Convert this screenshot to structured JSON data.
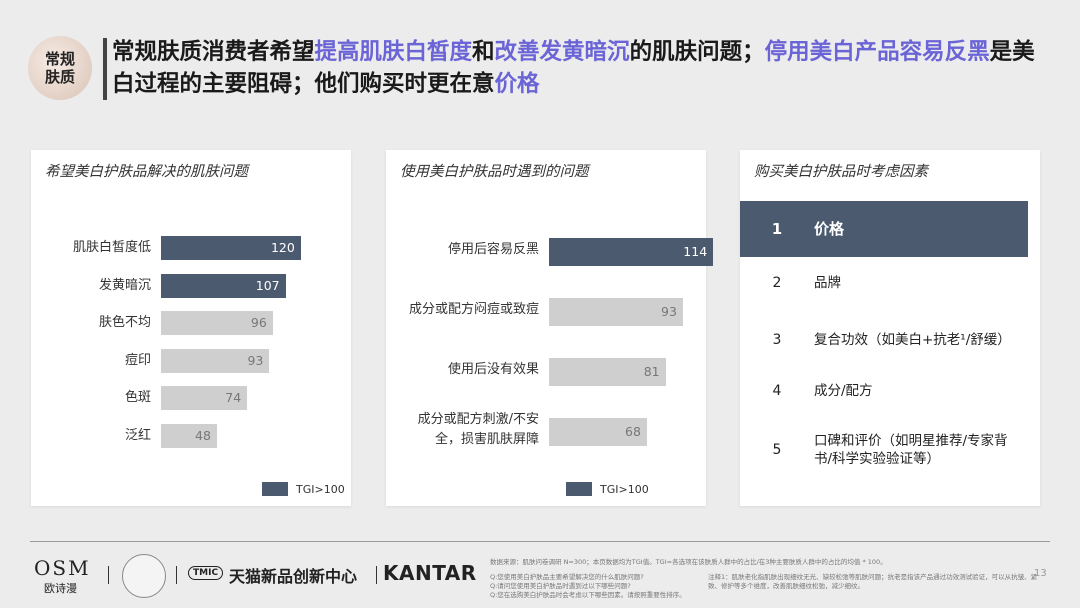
{
  "badge": "常规肤质",
  "title": {
    "p1": "常规肤质消费者希望",
    "h1": "提高肌肤白皙度",
    "p2": "和",
    "h2": "改善发黄暗沉",
    "p3": "的肌肤问题；",
    "h3": "停用美白产品容易反黑",
    "p4": "是美白过程的主要阻碍；他们购买时更在意",
    "h4": "价格"
  },
  "chart_data": [
    {
      "type": "bar",
      "title": "希望美白护肤品解决的肌肤问题",
      "categories": [
        "肌肤白皙度低",
        "发黄暗沉",
        "肤色不均",
        "痘印",
        "色斑",
        "泛红"
      ],
      "values": [
        120,
        107,
        96,
        93,
        74,
        48
      ],
      "highlight": [
        true,
        true,
        false,
        false,
        false,
        false
      ],
      "legend": "TGI>100"
    },
    {
      "type": "bar",
      "title": "使用美白护肤品时遇到的问题",
      "categories": [
        "停用后容易反黑",
        "成分或配方闷痘或致痘",
        "使用后没有效果",
        "成分或配方刺激/不安全，损害肌肤屏障"
      ],
      "values": [
        114,
        93,
        81,
        68
      ],
      "highlight": [
        true,
        false,
        false,
        false
      ],
      "legend": "TGI>100"
    }
  ],
  "ranking": {
    "title": "购买美白护肤品时考虑因素",
    "items": [
      {
        "rank": "1",
        "label": "价格"
      },
      {
        "rank": "2",
        "label": "品牌"
      },
      {
        "rank": "3",
        "label": "复合功效（如美白+抗老¹/舒缓）"
      },
      {
        "rank": "4",
        "label": "成分/配方"
      },
      {
        "rank": "5",
        "label": "口碑和评价（如明星推荐/专家背书/科学实验验证等）"
      }
    ]
  },
  "footer": {
    "osm": "OSM",
    "osm_cn": "欧诗漫",
    "tmic_badge": "TMIC",
    "tmic": "天猫新品创新中心",
    "kantar": "KANTAR",
    "source": "数据来源：肌肤问卷调研 N=300；本页数据均为TGI值。TGI=各选项在该肤质人群中的占比/在3种主要肤质人群中的占比的均值 * 100。",
    "q1": "Q:您使用美白护肤品主要希望解决您的什么肌肤问题?",
    "q2": "Q:请问您使用美白护肤品时遇到过以下哪些问题?",
    "q3": "Q:您在选购美白护肤品时会考虑以下哪些因素。请按照重要性排序。",
    "note": "注释1：肌肤老化指肌肤出现细纹无光、缺较松弛等肌肤问题；抗老是指该产品通过功效测试验证，可以从抗皱、紧致、修护等多个维度，改善肌肤细纹松弛，减少细纹。",
    "page": "13"
  }
}
